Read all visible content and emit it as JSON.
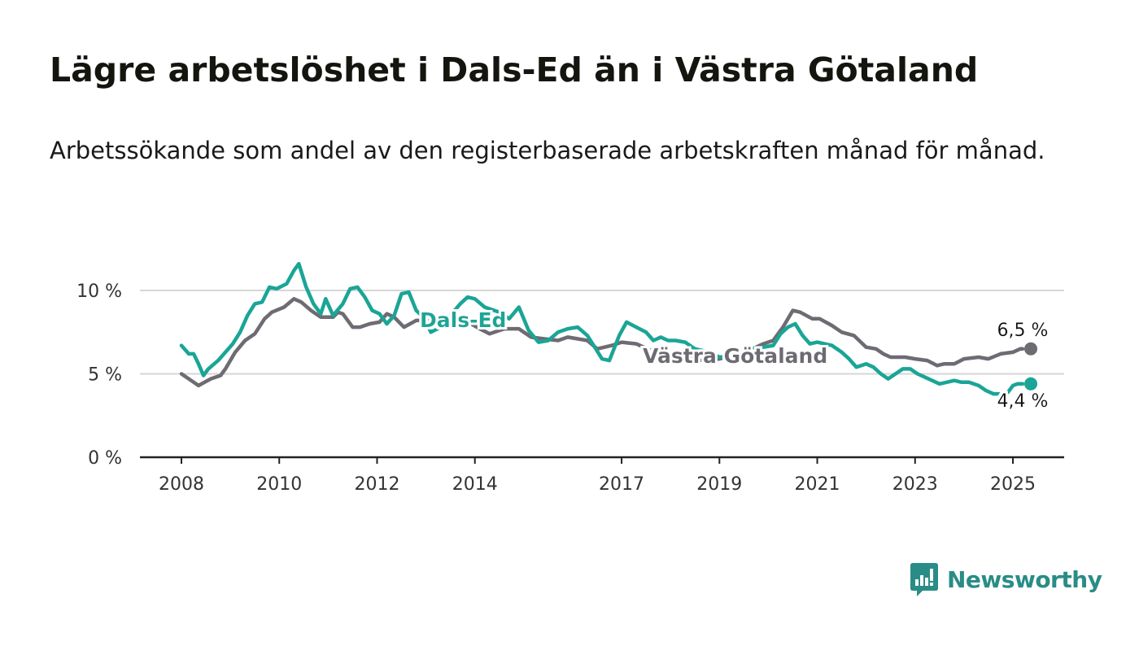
{
  "title": "Lägre arbetslöshet i Dals-Ed än i Västra Götaland",
  "subtitle": "Arbetssökande som andel av den registerbaserade arbetskraften månad för månad.",
  "brand": {
    "name": "Newsworthy",
    "color": "#2a8c86",
    "icon": "bar-chart-speech-bubble-icon"
  },
  "chart_data": {
    "type": "line",
    "x_ticks": [
      "2008",
      "2010",
      "2012",
      "2014",
      "2017",
      "2019",
      "2021",
      "2023",
      "2025"
    ],
    "y_ticks": [
      "0 %",
      "5 %",
      "10 %"
    ],
    "ylim": [
      0,
      12
    ],
    "grid": true,
    "series": [
      {
        "name": "Västra Götaland",
        "color": "#6e6b72",
        "end_label": "6,5 %",
        "points": [
          [
            2008.0,
            5.0
          ],
          [
            2008.2,
            4.6
          ],
          [
            2008.35,
            4.3
          ],
          [
            2008.6,
            4.7
          ],
          [
            2008.8,
            4.9
          ],
          [
            2008.9,
            5.3
          ],
          [
            2009.1,
            6.3
          ],
          [
            2009.3,
            7.0
          ],
          [
            2009.5,
            7.4
          ],
          [
            2009.7,
            8.3
          ],
          [
            2009.85,
            8.7
          ],
          [
            2010.1,
            9.0
          ],
          [
            2010.3,
            9.5
          ],
          [
            2010.45,
            9.3
          ],
          [
            2010.65,
            8.8
          ],
          [
            2010.85,
            8.4
          ],
          [
            2011.1,
            8.4
          ],
          [
            2011.2,
            8.7
          ],
          [
            2011.3,
            8.6
          ],
          [
            2011.5,
            7.8
          ],
          [
            2011.65,
            7.8
          ],
          [
            2011.85,
            8.0
          ],
          [
            2012.05,
            8.1
          ],
          [
            2012.2,
            8.6
          ],
          [
            2012.35,
            8.4
          ],
          [
            2012.55,
            7.8
          ],
          [
            2012.8,
            8.2
          ],
          [
            2013.0,
            8.2
          ],
          [
            2013.2,
            8.4
          ],
          [
            2013.5,
            8.4
          ],
          [
            2013.8,
            8.2
          ],
          [
            2014.1,
            7.7
          ],
          [
            2014.3,
            7.4
          ],
          [
            2014.6,
            7.7
          ],
          [
            2014.9,
            7.7
          ],
          [
            2015.15,
            7.2
          ],
          [
            2015.4,
            7.1
          ],
          [
            2015.7,
            7.0
          ],
          [
            2015.9,
            7.2
          ],
          [
            2016.3,
            7.0
          ],
          [
            2016.5,
            6.5
          ],
          [
            2016.8,
            6.7
          ],
          [
            2017.0,
            6.9
          ],
          [
            2017.3,
            6.8
          ],
          [
            2017.6,
            6.4
          ],
          [
            2017.8,
            6.3
          ],
          [
            2018.1,
            6.0
          ],
          [
            2018.4,
            5.9
          ],
          [
            2018.7,
            5.8
          ],
          [
            2019.0,
            5.9
          ],
          [
            2019.3,
            6.1
          ],
          [
            2019.6,
            6.4
          ],
          [
            2019.9,
            6.8
          ],
          [
            2020.1,
            7.0
          ],
          [
            2020.3,
            7.8
          ],
          [
            2020.5,
            8.8
          ],
          [
            2020.65,
            8.7
          ],
          [
            2020.9,
            8.3
          ],
          [
            2021.05,
            8.3
          ],
          [
            2021.3,
            7.9
          ],
          [
            2021.5,
            7.5
          ],
          [
            2021.75,
            7.3
          ],
          [
            2022.0,
            6.6
          ],
          [
            2022.2,
            6.5
          ],
          [
            2022.35,
            6.2
          ],
          [
            2022.5,
            6.0
          ],
          [
            2022.8,
            6.0
          ],
          [
            2023.0,
            5.9
          ],
          [
            2023.25,
            5.8
          ],
          [
            2023.45,
            5.5
          ],
          [
            2023.6,
            5.6
          ],
          [
            2023.8,
            5.6
          ],
          [
            2024.0,
            5.9
          ],
          [
            2024.3,
            6.0
          ],
          [
            2024.5,
            5.9
          ],
          [
            2024.75,
            6.2
          ],
          [
            2025.0,
            6.3
          ],
          [
            2025.15,
            6.5
          ],
          [
            2025.2,
            6.5
          ]
        ]
      },
      {
        "name": "Dals-Ed",
        "color": "#1aa596",
        "end_label": "4,4 %",
        "points": [
          [
            2008.0,
            6.7
          ],
          [
            2008.15,
            6.2
          ],
          [
            2008.25,
            6.2
          ],
          [
            2008.35,
            5.6
          ],
          [
            2008.45,
            4.9
          ],
          [
            2008.55,
            5.3
          ],
          [
            2008.75,
            5.8
          ],
          [
            2008.9,
            6.3
          ],
          [
            2009.05,
            6.8
          ],
          [
            2009.2,
            7.5
          ],
          [
            2009.35,
            8.5
          ],
          [
            2009.5,
            9.2
          ],
          [
            2009.65,
            9.3
          ],
          [
            2009.8,
            10.2
          ],
          [
            2009.95,
            10.1
          ],
          [
            2010.15,
            10.4
          ],
          [
            2010.3,
            11.2
          ],
          [
            2010.4,
            11.6
          ],
          [
            2010.55,
            10.2
          ],
          [
            2010.7,
            9.2
          ],
          [
            2010.85,
            8.6
          ],
          [
            2010.95,
            9.5
          ],
          [
            2011.1,
            8.5
          ],
          [
            2011.3,
            9.2
          ],
          [
            2011.45,
            10.1
          ],
          [
            2011.6,
            10.2
          ],
          [
            2011.75,
            9.6
          ],
          [
            2011.9,
            8.8
          ],
          [
            2012.05,
            8.6
          ],
          [
            2012.2,
            8.0
          ],
          [
            2012.35,
            8.5
          ],
          [
            2012.5,
            9.8
          ],
          [
            2012.65,
            9.9
          ],
          [
            2012.8,
            8.8
          ],
          [
            2012.95,
            8.4
          ],
          [
            2013.1,
            7.5
          ],
          [
            2013.3,
            7.8
          ],
          [
            2013.5,
            8.5
          ],
          [
            2013.7,
            9.2
          ],
          [
            2013.85,
            9.6
          ],
          [
            2014.0,
            9.5
          ],
          [
            2014.2,
            9.0
          ],
          [
            2014.5,
            8.7
          ],
          [
            2014.7,
            8.3
          ],
          [
            2014.9,
            9.0
          ],
          [
            2015.1,
            7.6
          ],
          [
            2015.3,
            6.9
          ],
          [
            2015.5,
            7.0
          ],
          [
            2015.7,
            7.5
          ],
          [
            2015.9,
            7.7
          ],
          [
            2016.1,
            7.8
          ],
          [
            2016.3,
            7.3
          ],
          [
            2016.45,
            6.6
          ],
          [
            2016.6,
            5.9
          ],
          [
            2016.75,
            5.8
          ],
          [
            2016.95,
            7.3
          ],
          [
            2017.1,
            8.1
          ],
          [
            2017.3,
            7.8
          ],
          [
            2017.5,
            7.5
          ],
          [
            2017.65,
            7.0
          ],
          [
            2017.8,
            7.2
          ],
          [
            2017.95,
            7.0
          ],
          [
            2018.1,
            7.0
          ],
          [
            2018.3,
            6.9
          ],
          [
            2018.5,
            6.5
          ],
          [
            2018.8,
            6.3
          ],
          [
            2019.0,
            6.0
          ],
          [
            2019.3,
            6.1
          ],
          [
            2019.6,
            6.5
          ],
          [
            2019.9,
            6.6
          ],
          [
            2020.1,
            6.7
          ],
          [
            2020.25,
            7.4
          ],
          [
            2020.4,
            7.8
          ],
          [
            2020.55,
            8.0
          ],
          [
            2020.7,
            7.3
          ],
          [
            2020.85,
            6.8
          ],
          [
            2021.0,
            6.9
          ],
          [
            2021.15,
            6.8
          ],
          [
            2021.3,
            6.7
          ],
          [
            2021.5,
            6.3
          ],
          [
            2021.65,
            5.9
          ],
          [
            2021.8,
            5.4
          ],
          [
            2022.0,
            5.6
          ],
          [
            2022.15,
            5.4
          ],
          [
            2022.3,
            5.0
          ],
          [
            2022.45,
            4.7
          ],
          [
            2022.6,
            5.0
          ],
          [
            2022.75,
            5.3
          ],
          [
            2022.9,
            5.3
          ],
          [
            2023.05,
            5.0
          ],
          [
            2023.2,
            4.8
          ],
          [
            2023.35,
            4.6
          ],
          [
            2023.5,
            4.4
          ],
          [
            2023.65,
            4.5
          ],
          [
            2023.8,
            4.6
          ],
          [
            2023.95,
            4.5
          ],
          [
            2024.1,
            4.5
          ],
          [
            2024.3,
            4.3
          ],
          [
            2024.45,
            4.0
          ],
          [
            2024.6,
            3.8
          ],
          [
            2024.75,
            3.8
          ],
          [
            2024.9,
            3.9
          ],
          [
            2025.0,
            4.3
          ],
          [
            2025.1,
            4.4
          ],
          [
            2025.2,
            4.4
          ]
        ]
      }
    ]
  }
}
